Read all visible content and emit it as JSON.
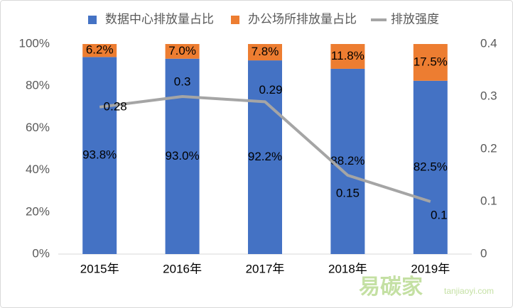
{
  "chart_data": {
    "type": "stacked-bar-line",
    "categories": [
      "2015年",
      "2016年",
      "2017年",
      "2018年",
      "2019年"
    ],
    "series": [
      {
        "name": "数据中心排放量占比",
        "color": "#4472c4",
        "values": [
          93.8,
          93.0,
          92.2,
          88.2,
          82.5
        ],
        "value_labels": [
          "93.8%",
          "93.0%",
          "92.2%",
          "88.2%",
          "82.5%"
        ]
      },
      {
        "name": "办公场所排放量占比",
        "color": "#ed7d31",
        "values": [
          6.2,
          7.0,
          7.8,
          11.8,
          17.5
        ],
        "value_labels": [
          "6.2%",
          "7.0%",
          "7.8%",
          "11.8%",
          "17.5%"
        ]
      },
      {
        "name": "排放强度",
        "color": "#a5a5a5",
        "axis": "y2",
        "values": [
          0.28,
          0.3,
          0.29,
          0.15,
          0.1
        ]
      }
    ],
    "ylim": [
      0,
      100
    ],
    "yticks": [
      {
        "value": 0,
        "label": "0%"
      },
      {
        "value": 20,
        "label": "20%"
      },
      {
        "value": 40,
        "label": "40%"
      },
      {
        "value": 60,
        "label": "60%"
      },
      {
        "value": 80,
        "label": "80%"
      },
      {
        "value": 100,
        "label": "100%"
      }
    ],
    "y2lim": [
      0,
      0.4
    ],
    "y2ticks": [
      0,
      0.1,
      0.2,
      0.3,
      0.4
    ],
    "legend": "top",
    "watermark": "易碳家",
    "watermark_url": "tanjiaoyi.com"
  }
}
